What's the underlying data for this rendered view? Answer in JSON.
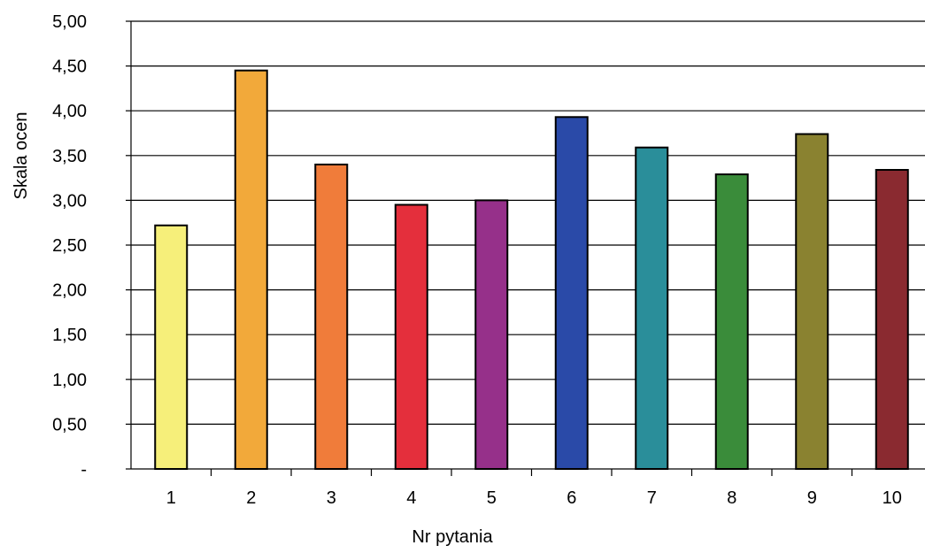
{
  "chart_data": {
    "type": "bar",
    "title": "",
    "xlabel": "Nr pytania",
    "ylabel": "Skala ocen",
    "categories": [
      "1",
      "2",
      "3",
      "4",
      "5",
      "6",
      "7",
      "8",
      "9",
      "10"
    ],
    "values": [
      2.72,
      4.45,
      3.4,
      2.95,
      3.0,
      3.93,
      3.59,
      3.29,
      3.74,
      3.34
    ],
    "ylim": [
      0,
      5
    ],
    "yticks": [
      0,
      0.5,
      1.0,
      1.5,
      2.0,
      2.5,
      3.0,
      3.5,
      4.0,
      4.5,
      5.0
    ],
    "ytick_labels": [
      "-",
      "0,50",
      "1,00",
      "1,50",
      "2,00",
      "2,50",
      "3,00",
      "3,50",
      "4,00",
      "4,50",
      "5,00"
    ],
    "grid": true,
    "legend": "none",
    "colors": [
      "#f6ef7a",
      "#f2a93a",
      "#f07c3a",
      "#e42f3c",
      "#96308a",
      "#2a4aa8",
      "#2a8e9a",
      "#3a8c3a",
      "#8a8230",
      "#8a2a30"
    ],
    "bar_outline": "#000000",
    "grid_color": "#000000"
  }
}
